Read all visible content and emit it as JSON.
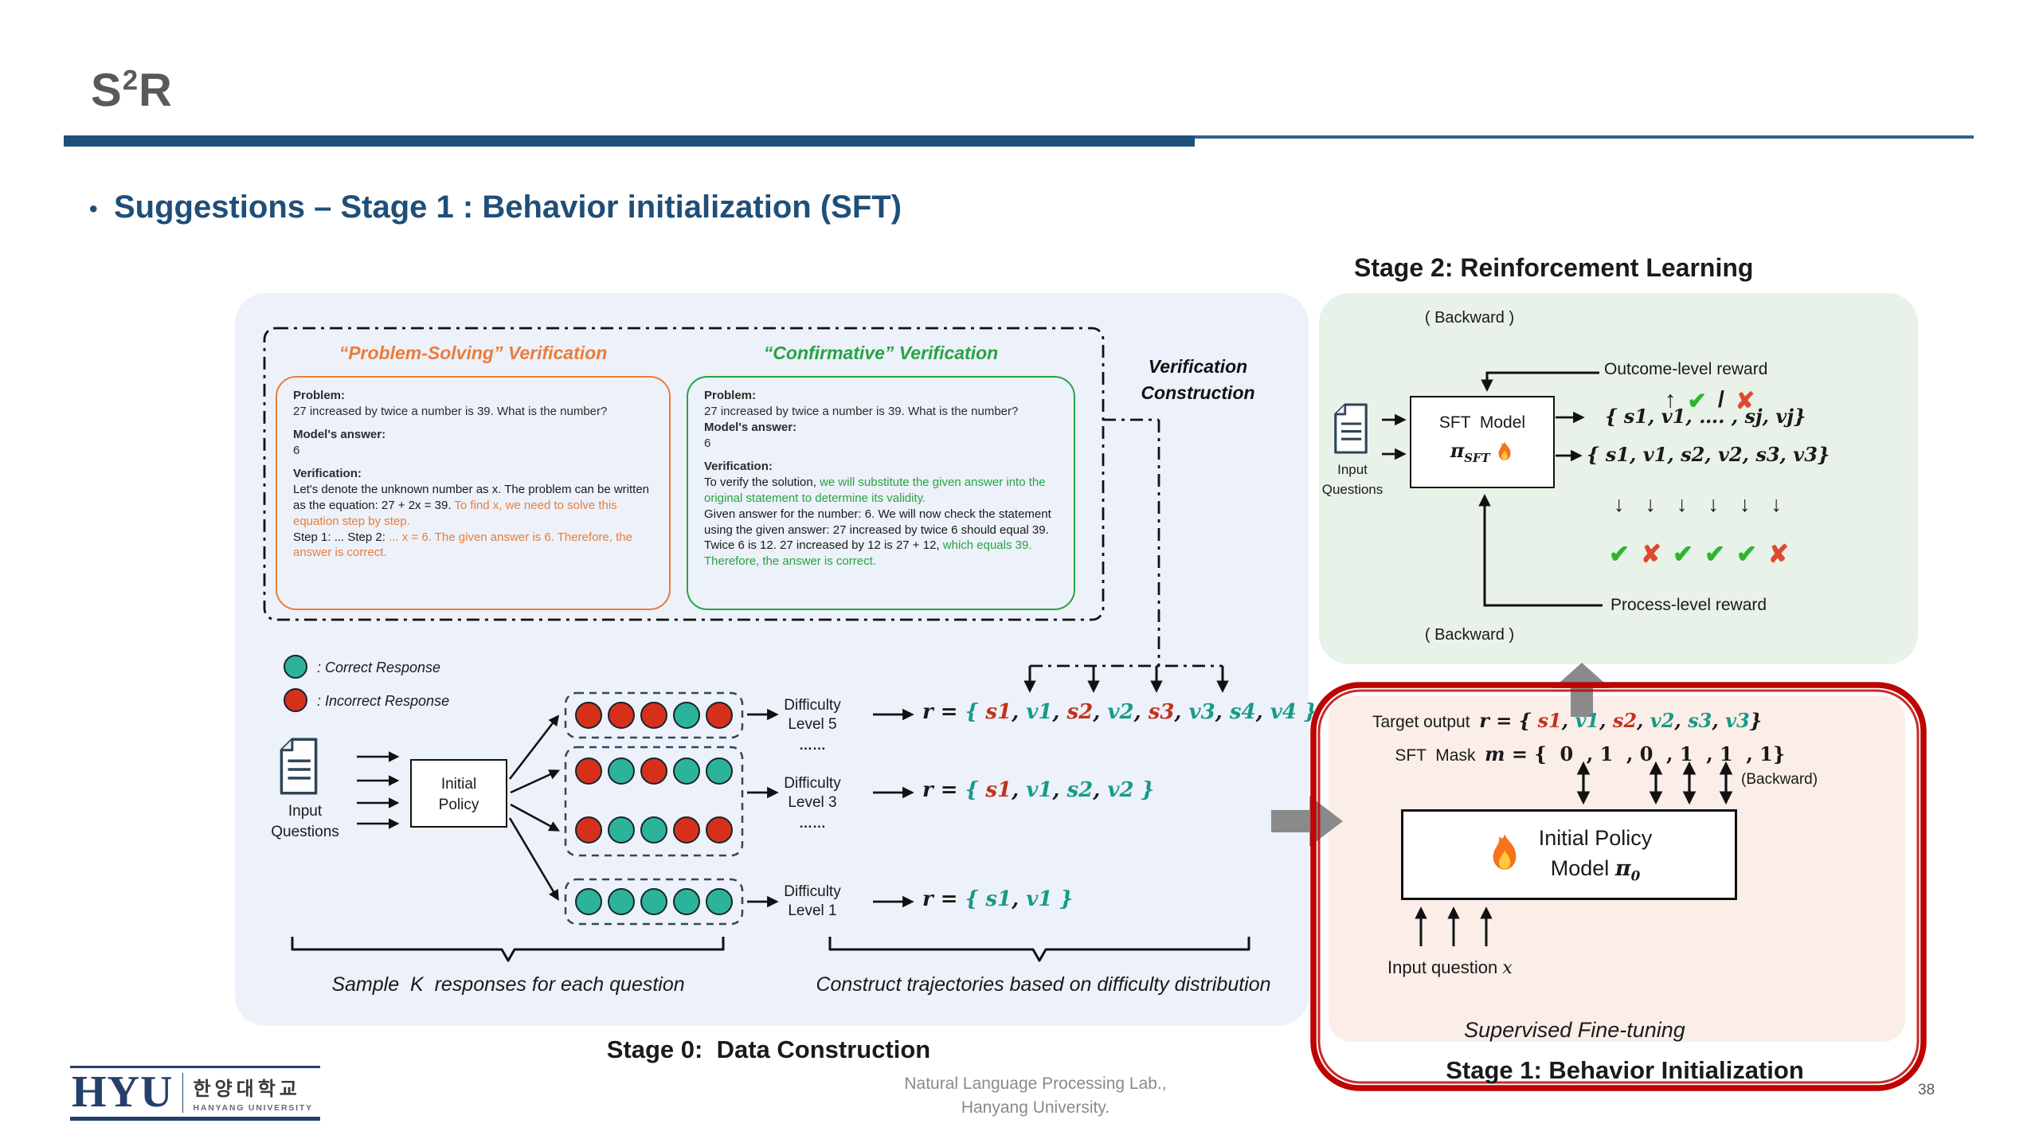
{
  "colors": {
    "k": "#1a1a1a",
    "r": "#C2321B",
    "t": "#169B87",
    "o": "#E87D3C",
    "g": "#27A343",
    "g2": "#2DB52D",
    "r2": "#E0492E",
    "dotT": "#2CB49B",
    "dotR": "#D6301B"
  },
  "slide": {
    "title": "S",
    "title_sup": "2",
    "title_tail": "R",
    "bullet": "•",
    "heading": "Suggestions – Stage 1 : Behavior initialization (SFT)",
    "page": "38"
  },
  "footer": {
    "lab_line1": "Natural Language Processing Lab.,",
    "lab_line2": "Hanyang University.",
    "logo_hyu": "HYU",
    "logo_kr": "한양대학교",
    "logo_en": "HANYANG UNIVERSITY"
  },
  "stage0": {
    "title": "Stage 0:  Data Construction",
    "verification_construction_l1": "Verification",
    "verification_construction_l2": "Construction",
    "problem_box": {
      "title": "“Problem-Solving” Verification",
      "problem_label": "Problem:",
      "problem": "27 increased by twice a number is 39. What is the number?",
      "answer_label": "Model's answer:",
      "answer": "6",
      "verification_label": "Verification:",
      "v1": [
        [
          "Let's denote the unknown number as x. The problem can be written as the equation: 27 + 2x = 39. ",
          "k"
        ],
        [
          "To find x, we need to solve this equation step by step.",
          "o"
        ]
      ],
      "v2": [
        [
          "Step 1: ... Step 2: ",
          "k"
        ],
        [
          "... x = 6. The given answer is 6. Therefore, the answer is correct.",
          "o"
        ]
      ]
    },
    "confirm_box": {
      "title": "“Confirmative” Verification",
      "problem_label": "Problem:",
      "problem": "27 increased by twice a number is 39. What is the number?",
      "answer_label": "Model's answer:",
      "answer": "6",
      "verification_label": "Verification:",
      "v1": [
        [
          "To verify the solution, ",
          "k"
        ],
        [
          "we will substitute the given answer into the original statement to determine its validity.",
          "g"
        ]
      ],
      "v2": [
        [
          "Given answer for the number: 6. We will now check the statement using the given answer: 27 increased by twice 6 should equal 39. Twice 6 is 12. 27 increased by 12 is 27 + 12, ",
          "k"
        ],
        [
          "which equals 39. Therefore, the answer is correct.",
          "g"
        ]
      ]
    },
    "legend": [
      {
        "color": "dotT",
        "label": ":  Correct Response"
      },
      {
        "color": "dotR",
        "label": ":  Incorrect Response"
      }
    ],
    "input_l1": "Input",
    "input_l2": "Questions",
    "policy_l1": "Initial",
    "policy_l2": "Policy",
    "groups": [
      {
        "rows": [
          [
            "dotR",
            "dotR",
            "dotR",
            "dotT",
            "dotR"
          ]
        ]
      },
      {
        "rows": [
          [
            "dotR",
            "dotT",
            "dotR",
            "dotT",
            "dotT"
          ],
          [
            "dotR",
            "dotT",
            "dotT",
            "dotR",
            "dotR"
          ]
        ]
      },
      {
        "rows": [
          [
            "dotT",
            "dotT",
            "dotT",
            "dotT",
            "dotT"
          ]
        ]
      }
    ],
    "difficulty": [
      {
        "l1": "Difficulty",
        "l2": "Level 5",
        "dots": "……"
      },
      {
        "l1": "Difficulty",
        "l2": "Level 3",
        "dots": "……"
      },
      {
        "l1": "Difficulty",
        "l2": "Level 1",
        "dots": ""
      }
    ],
    "formulas": {
      "l5": [
        [
          "r = ",
          "k"
        ],
        [
          "{ ",
          "t"
        ],
        [
          "s1",
          "r"
        ],
        [
          ", ",
          "k"
        ],
        [
          "v1",
          "t"
        ],
        [
          ", ",
          "k"
        ],
        [
          "s2",
          "r"
        ],
        [
          ", ",
          "k"
        ],
        [
          "v2",
          "t"
        ],
        [
          ", ",
          "k"
        ],
        [
          "s3",
          "r"
        ],
        [
          ", ",
          "k"
        ],
        [
          "v3",
          "t"
        ],
        [
          ", ",
          "k"
        ],
        [
          "s4",
          "t"
        ],
        [
          ", ",
          "k"
        ],
        [
          "v4",
          "t"
        ],
        [
          " }",
          "t"
        ]
      ],
      "l3": [
        [
          "r = ",
          "k"
        ],
        [
          "{ ",
          "t"
        ],
        [
          "s1",
          "r"
        ],
        [
          ", ",
          "k"
        ],
        [
          "v1",
          "t"
        ],
        [
          ", ",
          "k"
        ],
        [
          "s2",
          "t"
        ],
        [
          ", ",
          "k"
        ],
        [
          "v2",
          "t"
        ],
        [
          " }",
          "t"
        ]
      ],
      "l1": [
        [
          "r = ",
          "k"
        ],
        [
          "{ ",
          "t"
        ],
        [
          "s1",
          "t"
        ],
        [
          ", ",
          "k"
        ],
        [
          "v1",
          "t"
        ],
        [
          " }",
          "t"
        ]
      ]
    },
    "caption_left": "Sample  K  responses for each question",
    "caption_right": "Construct trajectories based on difficulty distribution"
  },
  "stage2": {
    "title": "Stage 2: Reinforcement Learning",
    "backward_top": "( Backward )",
    "backward_bottom": "( Backward )",
    "outcome": "Outcome-level reward",
    "process": "Process-level reward",
    "outcome_marks": [
      [
        "↑",
        "k"
      ],
      [
        "✔",
        "g2"
      ],
      [
        "/",
        "k"
      ],
      [
        "✘",
        "r2"
      ]
    ],
    "input_l1": "Input",
    "input_l2": "Questions",
    "sft_model": "SFT  Model",
    "pi": "π",
    "pi_sub": "SFT",
    "f1": [
      [
        "{ s1, v1, …. , sj, vj}",
        "k"
      ]
    ],
    "f2": [
      [
        "{ s1, v1, s2, v2, s3, v3}",
        "k"
      ]
    ],
    "down_arrows": [
      [
        "↓",
        "k"
      ],
      [
        "↓",
        "k"
      ],
      [
        "↓",
        "k"
      ],
      [
        "↓",
        "k"
      ],
      [
        "↓",
        "k"
      ],
      [
        "↓",
        "k"
      ]
    ],
    "marks": [
      [
        "✔",
        "g2"
      ],
      [
        "✘",
        "r2"
      ],
      [
        "✔",
        "g2"
      ],
      [
        "✔",
        "g2"
      ],
      [
        "✔",
        "g2"
      ],
      [
        "✘",
        "r2"
      ]
    ]
  },
  "stage1": {
    "title": "Stage 1: Behavior Initialization",
    "target_label": "Target output  ",
    "target": [
      [
        "r",
        "k"
      ],
      [
        " = { ",
        "k"
      ],
      [
        "s1",
        "r"
      ],
      [
        ", ",
        "k"
      ],
      [
        "v1",
        "t"
      ],
      [
        ", ",
        "k"
      ],
      [
        "s2",
        "r"
      ],
      [
        ", ",
        "k"
      ],
      [
        "v2",
        "t"
      ],
      [
        ", ",
        "k"
      ],
      [
        "s3",
        "t"
      ],
      [
        ", ",
        "k"
      ],
      [
        "v3",
        "t"
      ],
      [
        "}",
        "k"
      ]
    ],
    "mask_label": "SFT  Mask  ",
    "mask": [
      [
        "m",
        "k"
      ],
      [
        " = {  0  , 1  , 0  , 1  , 1  , 1}",
        "k"
      ]
    ],
    "backward": "(Backward)",
    "model_l1": "Initial Policy",
    "model_l2": "Model ",
    "pi": "π",
    "pi_sub": "0",
    "input_question": "Input question ",
    "input_question_var": "x",
    "caption": "Supervised Fine-tuning"
  }
}
